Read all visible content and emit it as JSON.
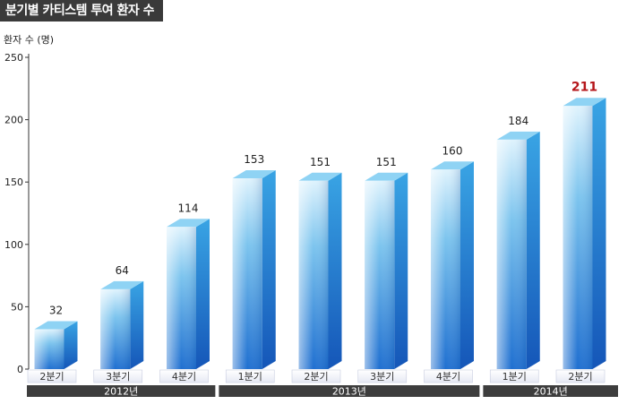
{
  "title": "분기별 카티스템 투여 환자 수",
  "chart_data": {
    "type": "bar",
    "title": "분기별 카티스템 투여 환자 수",
    "ylabel": "환자 수 (명)",
    "xlabel": "",
    "ylim": [
      0,
      250
    ],
    "yticks": [
      0,
      50,
      100,
      150,
      200,
      250
    ],
    "grid": false,
    "categories": [
      "2분기",
      "3분기",
      "4분기",
      "1분기",
      "2분기",
      "3분기",
      "4분기",
      "1분기",
      "2분기"
    ],
    "values": [
      32,
      64,
      114,
      153,
      151,
      151,
      160,
      184,
      211
    ],
    "value_labels": [
      "32",
      "64",
      "114",
      "153",
      "151",
      "151",
      "160",
      "184",
      "211"
    ],
    "highlight_index": 8,
    "highlight_color": "#b5161b",
    "bar_color": "#2f8fd8",
    "years": [
      {
        "label": "2012년",
        "count": 3
      },
      {
        "label": "2013년",
        "count": 4
      },
      {
        "label": "2014년",
        "count": 2
      }
    ]
  }
}
